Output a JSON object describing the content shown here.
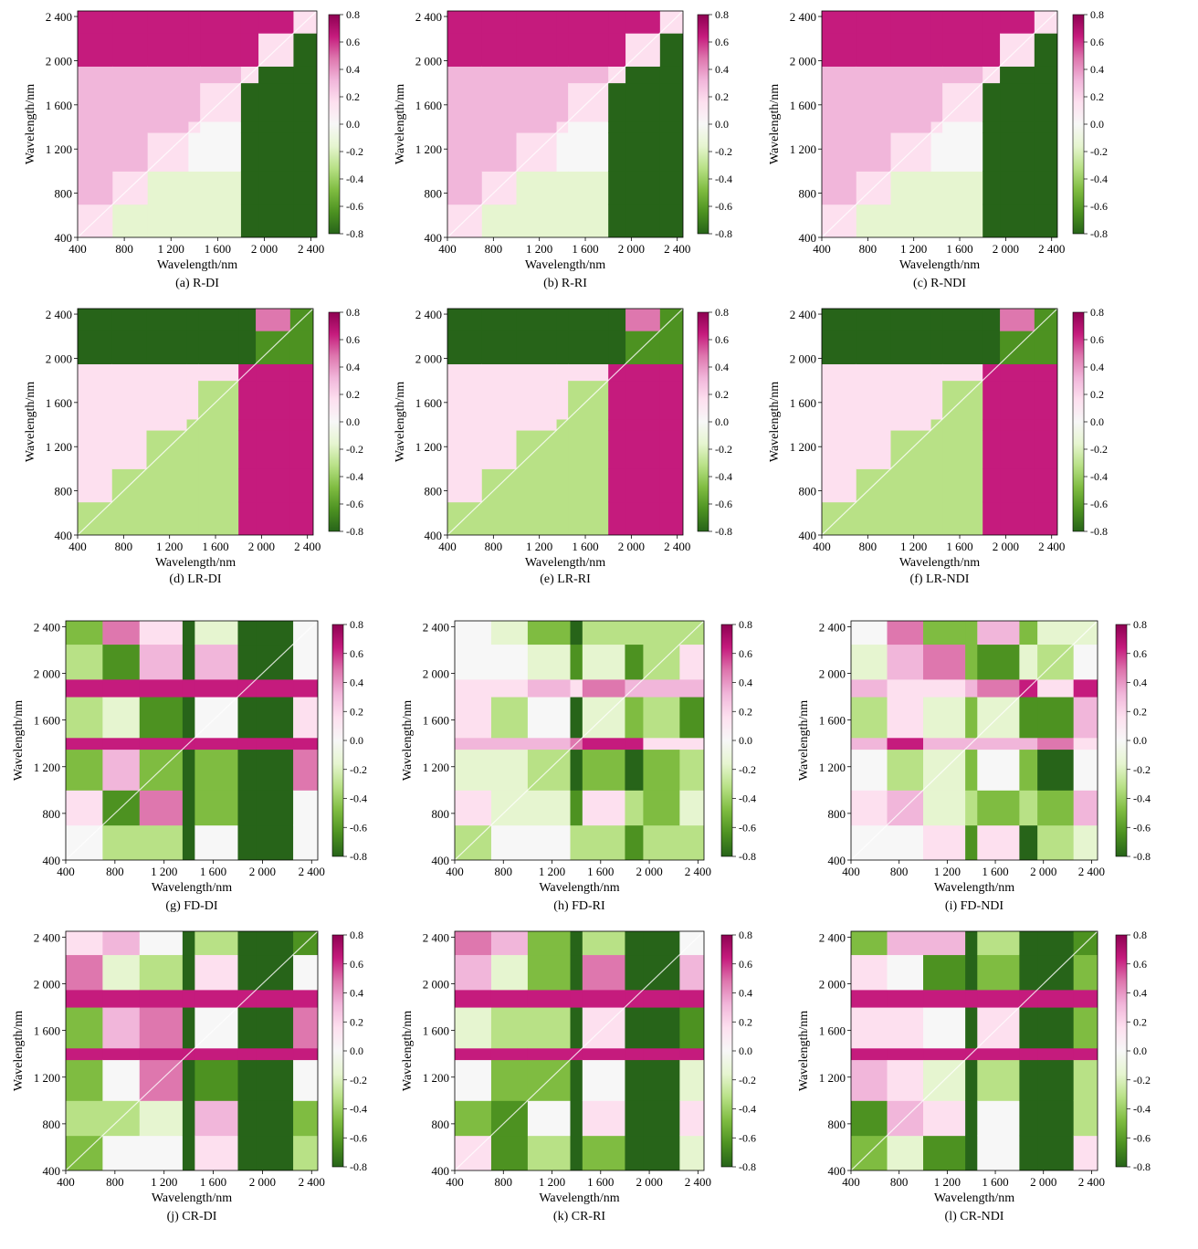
{
  "axes": {
    "xlabel": "Wavelength/nm",
    "ylabel": "Wavelength/nm",
    "ticks": [
      400,
      800,
      1200,
      1600,
      2000,
      2400
    ],
    "tick_labels": [
      "400",
      "800",
      "1 200",
      "1 600",
      "2 000",
      "2 400"
    ]
  },
  "colorbar": {
    "ticks": [
      "0.8",
      "0.6",
      "0.4",
      "0.2",
      "0.0",
      "-0.2",
      "-0.4",
      "-0.6",
      "-0.8"
    ],
    "colors": [
      "#276419",
      "#4d9221",
      "#7fbc41",
      "#b8e186",
      "#e6f5d0",
      "#f7f7f7",
      "#fde0ef",
      "#f1b6da",
      "#de77ae",
      "#c51b7d",
      "#8e0152"
    ]
  },
  "chart_data": [
    {
      "type": "heatmap",
      "caption": "(a) R-DI",
      "xlim": [
        400,
        2450
      ],
      "ylim": [
        400,
        2450
      ],
      "zlim": [
        -0.8,
        0.8
      ]
    },
    {
      "type": "heatmap",
      "caption": "(b) R-RI",
      "xlim": [
        400,
        2450
      ],
      "ylim": [
        400,
        2450
      ],
      "zlim": [
        -0.8,
        0.8
      ]
    },
    {
      "type": "heatmap",
      "caption": "(c) R-NDI",
      "xlim": [
        400,
        2450
      ],
      "ylim": [
        400,
        2450
      ],
      "zlim": [
        -0.8,
        0.8
      ]
    },
    {
      "type": "heatmap",
      "caption": "(d) LR-DI",
      "xlim": [
        400,
        2450
      ],
      "ylim": [
        400,
        2450
      ],
      "zlim": [
        -0.8,
        0.8
      ]
    },
    {
      "type": "heatmap",
      "caption": "(e) LR-RI",
      "xlim": [
        400,
        2450
      ],
      "ylim": [
        400,
        2450
      ],
      "zlim": [
        -0.8,
        0.8
      ]
    },
    {
      "type": "heatmap",
      "caption": "(f) LR-NDI",
      "xlim": [
        400,
        2450
      ],
      "ylim": [
        400,
        2450
      ],
      "zlim": [
        -0.8,
        0.8
      ]
    },
    {
      "type": "heatmap",
      "caption": "(g) FD-DI",
      "xlim": [
        400,
        2450
      ],
      "ylim": [
        400,
        2450
      ],
      "zlim": [
        -0.8,
        0.8
      ]
    },
    {
      "type": "heatmap",
      "caption": "(h) FD-RI",
      "xlim": [
        400,
        2450
      ],
      "ylim": [
        400,
        2450
      ],
      "zlim": [
        -0.8,
        0.8
      ]
    },
    {
      "type": "heatmap",
      "caption": "(i) FD-NDI",
      "xlim": [
        400,
        2450
      ],
      "ylim": [
        400,
        2450
      ],
      "zlim": [
        -0.8,
        0.8
      ]
    },
    {
      "type": "heatmap",
      "caption": "(j) CR-DI",
      "xlim": [
        400,
        2450
      ],
      "ylim": [
        400,
        2450
      ],
      "zlim": [
        -0.8,
        0.8
      ]
    },
    {
      "type": "heatmap",
      "caption": "(k) CR-RI",
      "xlim": [
        400,
        2450
      ],
      "ylim": [
        400,
        2450
      ],
      "zlim": [
        -0.8,
        0.8
      ]
    },
    {
      "type": "heatmap",
      "caption": "(l) CR-NDI",
      "xlim": [
        400,
        2450
      ],
      "ylim": [
        400,
        2450
      ],
      "zlim": [
        -0.8,
        0.8
      ]
    }
  ]
}
